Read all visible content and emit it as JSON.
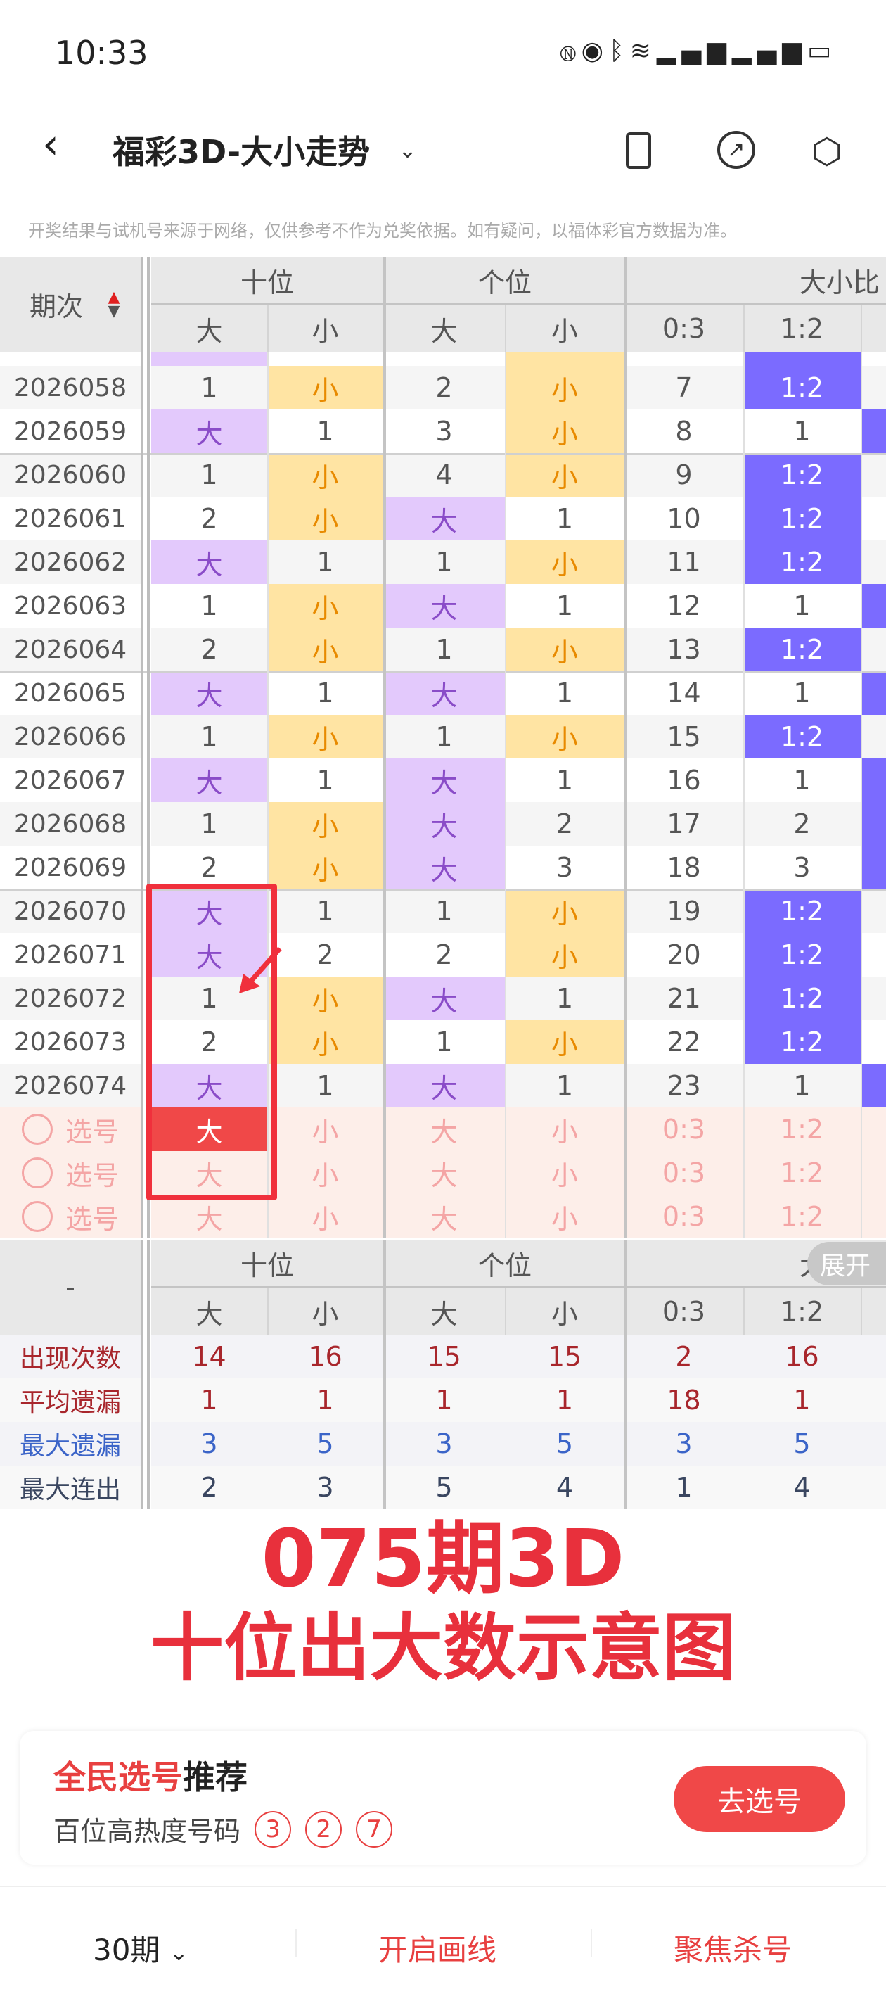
{
  "status_bar": {
    "time": "10:33",
    "icons": [
      "nfc-icon",
      "eye-icon",
      "bluetooth-icon",
      "wifi-icon",
      "signal-icon",
      "signal-icon",
      "battery-icon"
    ]
  },
  "nav": {
    "title": "福彩3D-大小走势",
    "back_icon": "chevron-left-icon",
    "actions": [
      "phone-icon",
      "share-icon",
      "settings-icon"
    ]
  },
  "notice": "开奖结果与试机号来源于网络，仅供参考不作为兑奖依据。如有疑问，以福体彩官方数据为准。",
  "table": {
    "period_header": "期次",
    "groups": [
      "十位",
      "个位",
      "大小比"
    ],
    "subheaders": [
      "大",
      "小",
      "大",
      "小",
      "0:3",
      "1:2"
    ],
    "rows": [
      [
        "2026058",
        "1",
        "小",
        "2",
        "小",
        "7",
        "1:2"
      ],
      [
        "2026059",
        "大",
        "1",
        "3",
        "小",
        "8",
        "1"
      ],
      [
        "2026060",
        "1",
        "小",
        "4",
        "小",
        "9",
        "1:2"
      ],
      [
        "2026061",
        "2",
        "小",
        "大",
        "1",
        "10",
        "1:2"
      ],
      [
        "2026062",
        "大",
        "1",
        "1",
        "小",
        "11",
        "1:2"
      ],
      [
        "2026063",
        "1",
        "小",
        "大",
        "1",
        "12",
        "1"
      ],
      [
        "2026064",
        "2",
        "小",
        "1",
        "小",
        "13",
        "1:2"
      ],
      [
        "2026065",
        "大",
        "1",
        "大",
        "1",
        "14",
        "1"
      ],
      [
        "2026066",
        "1",
        "小",
        "1",
        "小",
        "15",
        "1:2"
      ],
      [
        "2026067",
        "大",
        "1",
        "大",
        "1",
        "16",
        "1"
      ],
      [
        "2026068",
        "1",
        "小",
        "大",
        "2",
        "17",
        "2"
      ],
      [
        "2026069",
        "2",
        "小",
        "大",
        "3",
        "18",
        "3"
      ],
      [
        "2026070",
        "大",
        "1",
        "1",
        "小",
        "19",
        "1:2"
      ],
      [
        "2026071",
        "大",
        "2",
        "2",
        "小",
        "20",
        "1:2"
      ],
      [
        "2026072",
        "1",
        "小",
        "大",
        "1",
        "21",
        "1:2"
      ],
      [
        "2026073",
        "2",
        "小",
        "1",
        "小",
        "22",
        "1:2"
      ],
      [
        "2026074",
        "大",
        "1",
        "大",
        "1",
        "23",
        "1"
      ]
    ],
    "select_label": "选号",
    "select_rows": [
      [
        "大",
        "小",
        "大",
        "小",
        "0:3",
        "1:2"
      ],
      [
        "大",
        "小",
        "大",
        "小",
        "0:3",
        "1:2"
      ],
      [
        "大",
        "小",
        "大",
        "小",
        "0:3",
        "1:2"
      ]
    ]
  },
  "stats": {
    "corner": "-",
    "expand": "展开",
    "rows": [
      {
        "label": "出现次数",
        "values": [
          "14",
          "16",
          "15",
          "15",
          "2",
          "16"
        ],
        "color": "#a8262c"
      },
      {
        "label": "平均遗漏",
        "values": [
          "1",
          "1",
          "1",
          "1",
          "18",
          "1"
        ],
        "color": "#a8262c"
      },
      {
        "label": "最大遗漏",
        "values": [
          "3",
          "5",
          "3",
          "5",
          "3",
          "5"
        ],
        "color": "#3b64c8"
      },
      {
        "label": "最大连出",
        "values": [
          "2",
          "3",
          "5",
          "4",
          "1",
          "4"
        ],
        "color": "#3a4660"
      }
    ]
  },
  "overlay": {
    "line1": "075期3D",
    "line2": "十位出大数示意图"
  },
  "card": {
    "title_red": "全民选号",
    "title_black": "推荐",
    "subtitle": "百位高热度号码",
    "numbers": [
      "3",
      "2",
      "7"
    ],
    "button": "去选号"
  },
  "bottom": {
    "period": "30期",
    "draw": "开启画线",
    "kill": "聚焦杀号"
  },
  "colors": {
    "big": "#e3c9fc",
    "small": "#ffe4a3",
    "ratio": "#7b6bff",
    "accent": "#f04848"
  }
}
